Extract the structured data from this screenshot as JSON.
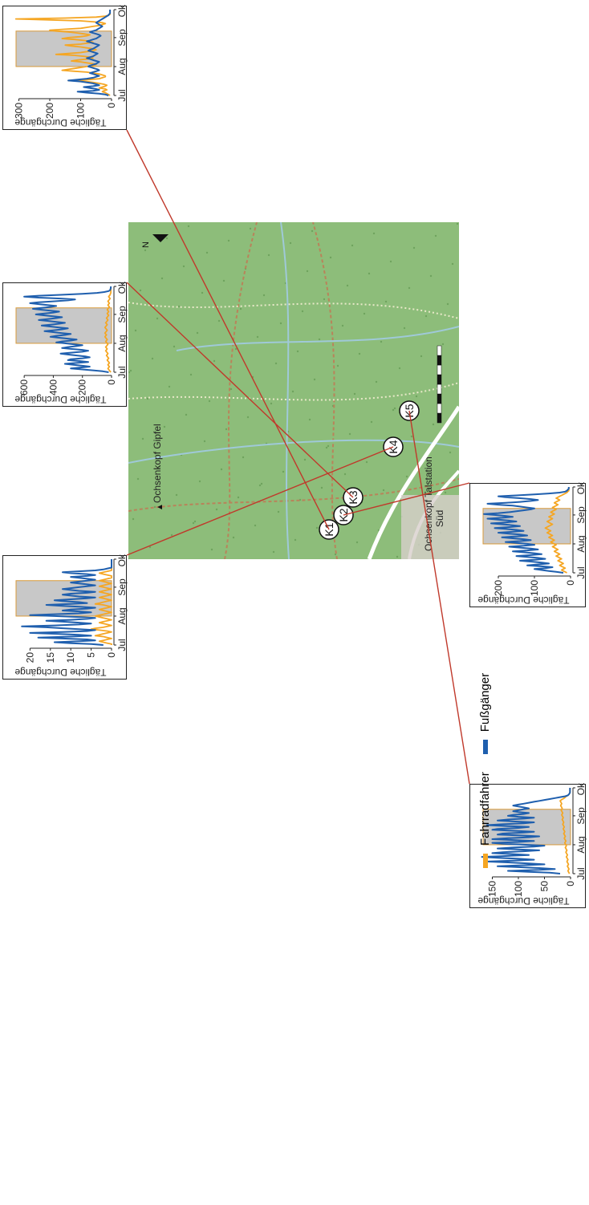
{
  "colors": {
    "fahrrad": "#f5a623",
    "fuss": "#1f5fae",
    "shade": "#c8c8c8",
    "shade_edge": "#d89a3a",
    "connector": "#c0392b"
  },
  "legend": {
    "fahrrad": "Fahrradfahrer",
    "fuss": "Fußgänger"
  },
  "map": {
    "peak_label": "Ochsenkopf Gipfel",
    "station_label_1": "Ochsenkopf Talstation",
    "station_label_2": "Süd",
    "north": "N",
    "markers": [
      "K1",
      "K2",
      "K3",
      "K4",
      "K5"
    ]
  },
  "chart_data": [
    {
      "id": "K1",
      "type": "line",
      "ylabel": "Tägliche Durchgänge",
      "yticks": [
        0,
        100,
        200,
        300
      ],
      "ylim": [
        0,
        330
      ],
      "xticks": [
        "Jul",
        "Aug",
        "Sep",
        "Okt"
      ],
      "shaded": [
        "Aug 1",
        "Sep 8"
      ],
      "series": [
        {
          "name": "Fahrradfahrer",
          "values": [
            5,
            10,
            15,
            20,
            30,
            25,
            15,
            20,
            40,
            30,
            20,
            15,
            25,
            40,
            60,
            80,
            140,
            70,
            40,
            30,
            20,
            20,
            30,
            40,
            60,
            80,
            120,
            160,
            140,
            120,
            100,
            80,
            60,
            50,
            60,
            80,
            100,
            130,
            110,
            80,
            60,
            70,
            90,
            120,
            180,
            140,
            100,
            80,
            60,
            50,
            60,
            80,
            100,
            130,
            150,
            100,
            80,
            60,
            70,
            90,
            120,
            160,
            140,
            100,
            80,
            70,
            90,
            110,
            140,
            180,
            200,
            150,
            100,
            80,
            60,
            40,
            30,
            20,
            30,
            60,
            100,
            200,
            310,
            150,
            50,
            20,
            10,
            5,
            5,
            5,
            5,
            5,
            5
          ]
        },
        {
          "name": "Fußgänger",
          "values": [
            10,
            20,
            40,
            80,
            110,
            60,
            40,
            50,
            70,
            90,
            60,
            40,
            50,
            60,
            80,
            100,
            140,
            110,
            80,
            60,
            50,
            40,
            50,
            60,
            70,
            60,
            50,
            40,
            45,
            55,
            65,
            75,
            70,
            60,
            50,
            45,
            40,
            50,
            60,
            70,
            80,
            70,
            60,
            55,
            50,
            45,
            55,
            65,
            75,
            70,
            60,
            55,
            50,
            45,
            40,
            50,
            60,
            70,
            80,
            70,
            60,
            50,
            45,
            40,
            35,
            40,
            50,
            60,
            70,
            60,
            50,
            45,
            40,
            35,
            30,
            35,
            40,
            45,
            50,
            45,
            40,
            35,
            30,
            25,
            20,
            15,
            10,
            8,
            5,
            5,
            5,
            5,
            5
          ]
        }
      ]
    },
    {
      "id": "K2",
      "type": "line",
      "ylabel": "Tägliche Durchgänge",
      "yticks": [
        0,
        100,
        200
      ],
      "ylim": [
        0,
        260
      ],
      "xticks": [
        "Jul",
        "Aug",
        "Sep",
        "Okt"
      ],
      "shaded": [
        "Aug 1",
        "Sep 8"
      ],
      "series": [
        {
          "name": "Fahrradfahrer",
          "values": [
            10,
            15,
            20,
            25,
            20,
            15,
            20,
            25,
            30,
            25,
            20,
            25,
            30,
            35,
            30,
            25,
            30,
            35,
            40,
            35,
            30,
            35,
            40,
            45,
            40,
            35,
            40,
            45,
            50,
            45,
            40,
            45,
            50,
            55,
            50,
            45,
            50,
            55,
            60,
            55,
            50,
            55,
            60,
            65,
            60,
            55,
            60,
            65,
            70,
            65,
            60,
            55,
            50,
            55,
            60,
            65,
            60,
            55,
            50,
            55,
            60,
            55,
            50,
            45,
            50,
            55,
            50,
            45,
            40,
            45,
            50,
            45,
            40,
            35,
            40,
            45,
            40,
            35,
            30,
            35,
            40,
            35,
            30,
            25,
            20,
            15,
            10,
            8,
            5,
            5,
            5,
            5,
            5
          ]
        },
        {
          "name": "Fußgänger",
          "values": [
            20,
            40,
            60,
            80,
            100,
            70,
            50,
            80,
            120,
            90,
            60,
            80,
            110,
            140,
            100,
            70,
            90,
            120,
            150,
            110,
            80,
            100,
            130,
            160,
            120,
            90,
            110,
            140,
            170,
            130,
            100,
            120,
            150,
            180,
            140,
            110,
            130,
            160,
            190,
            150,
            120,
            140,
            170,
            200,
            160,
            130,
            150,
            180,
            210,
            170,
            140,
            160,
            190,
            220,
            180,
            150,
            170,
            200,
            230,
            190,
            160,
            180,
            210,
            240,
            200,
            170,
            150,
            130,
            110,
            100,
            120,
            140,
            160,
            200,
            230,
            180,
            140,
            110,
            90,
            110,
            140,
            180,
            200,
            150,
            100,
            60,
            30,
            15,
            10,
            8,
            5,
            5,
            5
          ]
        }
      ]
    },
    {
      "id": "K3",
      "type": "line",
      "ylabel": "Tägliche Durchgänge",
      "yticks": [
        0,
        200,
        400,
        600
      ],
      "ylim": [
        0,
        700
      ],
      "xticks": [
        "Jul",
        "Aug",
        "Sep",
        "Okt"
      ],
      "shaded": [
        "Aug 1",
        "Sep 8"
      ],
      "series": [
        {
          "name": "Fahrradfahrer",
          "values": [
            5,
            10,
            15,
            20,
            25,
            20,
            15,
            20,
            25,
            20,
            15,
            20,
            25,
            30,
            25,
            20,
            25,
            30,
            35,
            30,
            25,
            30,
            35,
            40,
            35,
            30,
            35,
            40,
            35,
            30,
            25,
            30,
            35,
            40,
            35,
            30,
            35,
            40,
            45,
            40,
            35,
            40,
            45,
            40,
            35,
            30,
            35,
            40,
            45,
            40,
            35,
            30,
            35,
            40,
            35,
            30,
            25,
            30,
            35,
            30,
            25,
            20,
            25,
            30,
            25,
            20,
            25,
            30,
            25,
            20,
            15,
            20,
            25,
            20,
            15,
            20,
            25,
            20,
            15,
            10,
            15,
            20,
            15,
            10,
            8,
            5,
            5,
            5,
            5,
            5,
            5,
            5,
            5
          ]
        },
        {
          "name": "Fußgänger",
          "values": [
            20,
            60,
            120,
            200,
            280,
            220,
            150,
            200,
            260,
            320,
            240,
            160,
            220,
            300,
            280,
            200,
            150,
            180,
            240,
            300,
            350,
            280,
            200,
            160,
            200,
            280,
            340,
            300,
            240,
            200,
            260,
            320,
            380,
            340,
            280,
            240,
            300,
            360,
            420,
            380,
            320,
            280,
            340,
            400,
            460,
            400,
            340,
            300,
            360,
            420,
            480,
            420,
            360,
            320,
            380,
            440,
            500,
            440,
            380,
            340,
            400,
            460,
            520,
            460,
            400,
            360,
            420,
            480,
            540,
            480,
            420,
            380,
            440,
            500,
            560,
            500,
            400,
            300,
            250,
            350,
            500,
            600,
            500,
            350,
            200,
            100,
            50,
            20,
            10,
            8,
            5,
            5,
            5
          ]
        }
      ]
    },
    {
      "id": "K4",
      "type": "line",
      "ylabel": "Tägliche Durchgänge",
      "yticks": [
        0,
        5,
        10,
        15,
        20
      ],
      "ylim": [
        0,
        25
      ],
      "xticks": [
        "Jul",
        "Aug",
        "Sep",
        "Okt"
      ],
      "shaded": [
        "Aug 1",
        "Sep 8"
      ],
      "series": [
        {
          "name": "Fahrradfahrer",
          "values": [
            0,
            0,
            1,
            2,
            3,
            2,
            1,
            0,
            1,
            2,
            4,
            3,
            2,
            1,
            0,
            1,
            3,
            5,
            4,
            2,
            1,
            0,
            1,
            2,
            3,
            2,
            1,
            0,
            1,
            2,
            3,
            4,
            3,
            2,
            1,
            0,
            1,
            2,
            3,
            2,
            1,
            0,
            1,
            2,
            4,
            3,
            2,
            1,
            0,
            1,
            2,
            3,
            2,
            1,
            0,
            1,
            2,
            3,
            2,
            1,
            0,
            1,
            2,
            3,
            2,
            1,
            0,
            1,
            2,
            3,
            2,
            1,
            0,
            0,
            0,
            1,
            2,
            3,
            2,
            1,
            0,
            0,
            0,
            0,
            0,
            0,
            0,
            0,
            0,
            0,
            0,
            0,
            0
          ]
        },
        {
          "name": "Fußgänger",
          "values": [
            2,
            5,
            10,
            14,
            8,
            4,
            6,
            12,
            18,
            10,
            5,
            8,
            14,
            20,
            12,
            6,
            4,
            8,
            12,
            16,
            22,
            14,
            8,
            5,
            8,
            12,
            16,
            10,
            6,
            4,
            8,
            14,
            20,
            14,
            8,
            5,
            8,
            12,
            10,
            6,
            4,
            8,
            12,
            16,
            10,
            6,
            8,
            12,
            14,
            10,
            6,
            4,
            8,
            10,
            12,
            10,
            6,
            4,
            8,
            10,
            12,
            10,
            8,
            6,
            4,
            6,
            8,
            10,
            8,
            6,
            4,
            6,
            8,
            10,
            6,
            4,
            6,
            10,
            12,
            8,
            4,
            2,
            1,
            0,
            0,
            0,
            0,
            0,
            0,
            0,
            0,
            0,
            0
          ]
        }
      ]
    },
    {
      "id": "K5",
      "type": "line",
      "ylabel": "Tägliche Durchgänge",
      "yticks": [
        0,
        50,
        100,
        150
      ],
      "ylim": [
        0,
        180
      ],
      "xticks": [
        "Jul",
        "Aug",
        "Sep",
        "Okt"
      ],
      "shaded": [
        "Aug 1",
        "Sep 8"
      ],
      "series": [
        {
          "name": "Fahrradfahrer",
          "values": [
            2,
            3,
            4,
            5,
            4,
            3,
            4,
            5,
            6,
            5,
            4,
            5,
            6,
            7,
            6,
            5,
            6,
            7,
            8,
            7,
            6,
            7,
            8,
            9,
            8,
            7,
            8,
            9,
            10,
            9,
            8,
            9,
            10,
            11,
            10,
            9,
            10,
            11,
            12,
            11,
            10,
            11,
            12,
            13,
            12,
            11,
            12,
            13,
            14,
            13,
            12,
            13,
            14,
            15,
            14,
            13,
            14,
            15,
            16,
            15,
            14,
            15,
            16,
            17,
            16,
            15,
            16,
            17,
            18,
            17,
            16,
            17,
            18,
            19,
            18,
            17,
            18,
            19,
            20,
            18,
            15,
            12,
            10,
            8,
            5,
            3,
            2,
            1,
            1,
            1,
            1,
            1,
            1
          ]
        },
        {
          "name": "Fußgänger",
          "values": [
            20,
            40,
            80,
            120,
            60,
            30,
            60,
            100,
            140,
            90,
            50,
            80,
            120,
            160,
            110,
            70,
            100,
            140,
            170,
            120,
            80,
            110,
            150,
            130,
            90,
            60,
            100,
            140,
            110,
            70,
            50,
            90,
            130,
            150,
            100,
            70,
            110,
            150,
            120,
            80,
            60,
            100,
            140,
            130,
            90,
            70,
            110,
            150,
            140,
            100,
            80,
            120,
            160,
            130,
            90,
            70,
            110,
            140,
            120,
            90,
            70,
            100,
            120,
            110,
            90,
            80,
            100,
            110,
            100,
            90,
            80,
            90,
            100,
            110,
            100,
            90,
            80,
            70,
            60,
            50,
            40,
            30,
            20,
            10,
            5,
            3,
            2,
            1,
            1,
            1,
            1,
            1,
            1
          ]
        }
      ]
    }
  ]
}
